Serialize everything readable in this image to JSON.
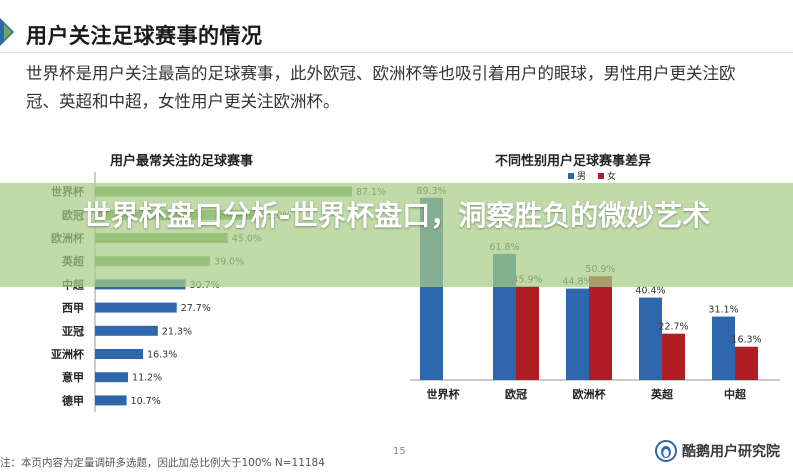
{
  "page": {
    "title": "用户关注足球赛事的情况",
    "intro": "世界杯是用户关注最高的足球赛事，此外欧冠、欧洲杯等也吸引着用户的眼球，男性用户更关注欧冠、英超和中超，女性用户更关注欧洲杯。",
    "banner": "世界杯盘口分析-世界杯盘口，洞察胜负的微妙艺术",
    "footnote": "注：本页内容为定量调研多选题，因此加总比例大于100%  N=11184",
    "page_number": "15",
    "brand": "酷鹅用户研究院"
  },
  "colors": {
    "green": "#6fa662",
    "blue": "#2e67ac",
    "red": "#b11d24",
    "banner": "#a8cc87"
  },
  "chart_data": [
    {
      "type": "bar",
      "orientation": "horizontal",
      "title": "用户最常关注的足球赛事",
      "categories": [
        "世界杯",
        "欧冠",
        "欧洲杯",
        "英超",
        "中超",
        "西甲",
        "亚冠",
        "亚洲杯",
        "意甲",
        "德甲"
      ],
      "values": [
        87.1,
        55.0,
        45.0,
        39.0,
        30.7,
        27.7,
        21.3,
        16.3,
        11.2,
        10.7
      ],
      "value_labels": [
        "87.1%",
        "55.0%",
        "45.0%",
        "39.0%",
        "30.7%",
        "27.7%",
        "21.3%",
        "16.3%",
        "11.2%",
        "10.7%"
      ],
      "bar_colors": [
        "#6fa662",
        "#6fa662",
        "#6fa662",
        "#6fa662",
        "#2e67ac",
        "#2e67ac",
        "#2e67ac",
        "#2e67ac",
        "#2e67ac",
        "#2e67ac"
      ],
      "xlim": [
        0,
        100
      ],
      "grid": false
    },
    {
      "type": "bar",
      "title": "不同性别用户足球赛事差异",
      "categories": [
        "世界杯",
        "欧冠",
        "欧洲杯",
        "英超",
        "中超"
      ],
      "series": [
        {
          "name": "男",
          "color": "#2e67ac",
          "values": [
            89.3,
            61.8,
            44.8,
            40.4,
            31.1
          ],
          "value_labels": [
            "89.3%",
            "61.8%",
            "44.8%",
            "40.4%",
            "31.1%"
          ]
        },
        {
          "name": "女",
          "color": "#b11d24",
          "values": [
            null,
            45.9,
            50.9,
            22.7,
            16.3
          ],
          "value_labels": [
            "",
            "45.9%",
            "50.9%",
            "22.7%",
            "16.3%"
          ]
        }
      ],
      "ylim": [
        0,
        100
      ],
      "legend": "top-right",
      "grid": false
    }
  ]
}
